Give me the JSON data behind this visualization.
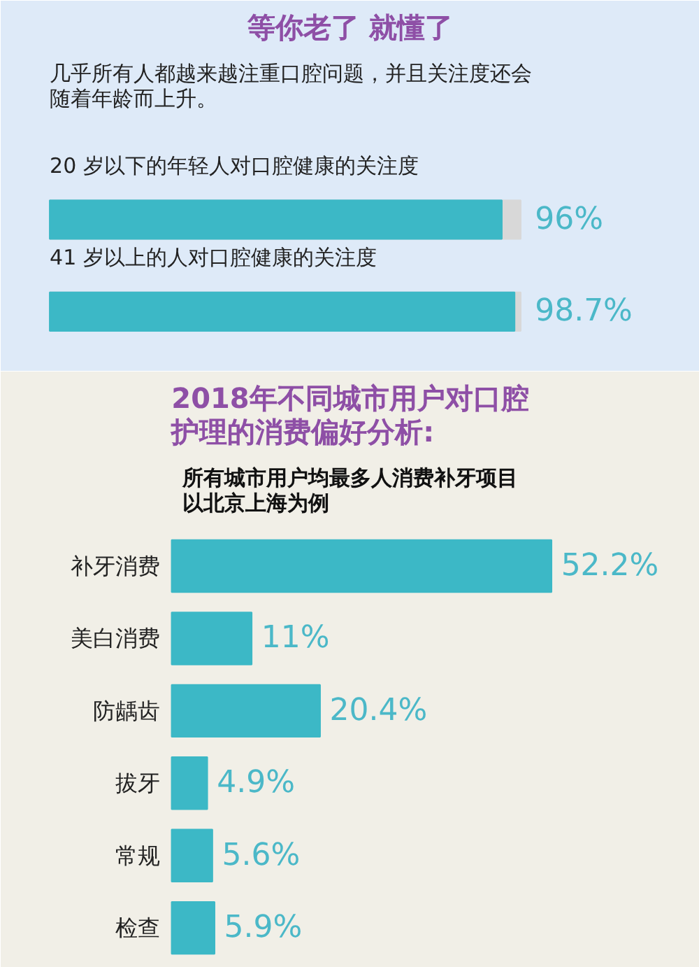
{
  "chart_data": [
    {
      "type": "bar",
      "orientation": "horizontal",
      "title": "等你老了 就懂了",
      "subtitle": "几乎所有人都越来越注重口腔问题，并且关注度还会随着年龄而上升。",
      "categories": [
        "20 岁以下的年轻人对口腔健康的关注度",
        "41 岁以上的人对口腔健康的关注度"
      ],
      "values": [
        96,
        98.7
      ],
      "value_labels": [
        "96%",
        "98.7%"
      ],
      "color": "#3cb8c6",
      "xlim": [
        0,
        100
      ]
    },
    {
      "type": "bar",
      "orientation": "horizontal",
      "title": "2018年不同城市用户对口腔护理的消费偏好分析:",
      "subtitle": "所有城市用户均最多人消费补牙项目以北京上海为例",
      "categories": [
        "补牙消费",
        "美白消费",
        "防龋齿",
        "拔牙",
        "常规",
        "检查"
      ],
      "values": [
        52.2,
        11,
        20.4,
        4.9,
        5.6,
        5.9
      ],
      "value_labels": [
        "52.2%",
        "11%",
        "20.4%",
        "4.9%",
        "5.6%",
        "5.9%"
      ],
      "color": "#3cb8c6"
    }
  ]
}
